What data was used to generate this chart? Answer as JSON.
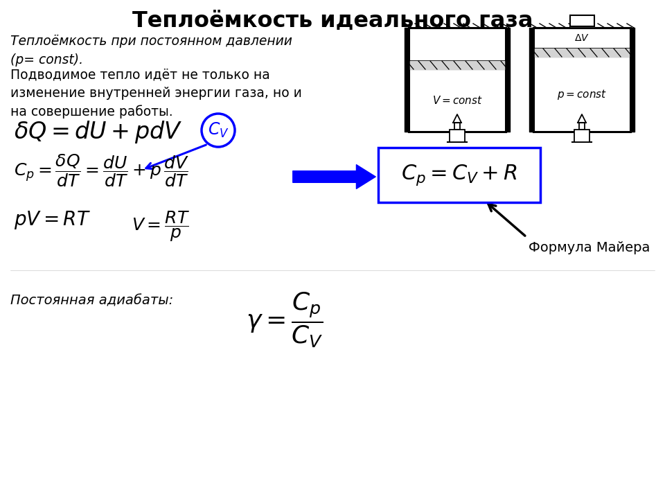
{
  "title": "Теплоёмкость идеального газа",
  "title_fontsize": 22,
  "bg_color": "#ffffff",
  "text_color": "#000000",
  "italic_text1": "Теплоёмкость при постоянном давлении\n(p= const).",
  "text2": "Подводимое тепло идёт не только на\nизменение внутренней энергии газа, но и\nна совершение работы.",
  "formula1": "$\\delta Q=dU+pdV$",
  "formula2": "$C_p=\\dfrac{\\delta Q}{dT}=\\dfrac{dU}{dT}+p\\,\\dfrac{dV}{dT}$",
  "formula3": "$pV=RT$",
  "formula4": "$V=\\dfrac{RT}{p}$",
  "formula_box": "$C_p=C_V+R$",
  "formula_gamma": "$\\gamma=\\dfrac{C_p}{C_V}$",
  "label_cv": "$C_V$",
  "label_mayer": "Формула Майера",
  "label_adiabat": "Постоянная адиабаты:"
}
